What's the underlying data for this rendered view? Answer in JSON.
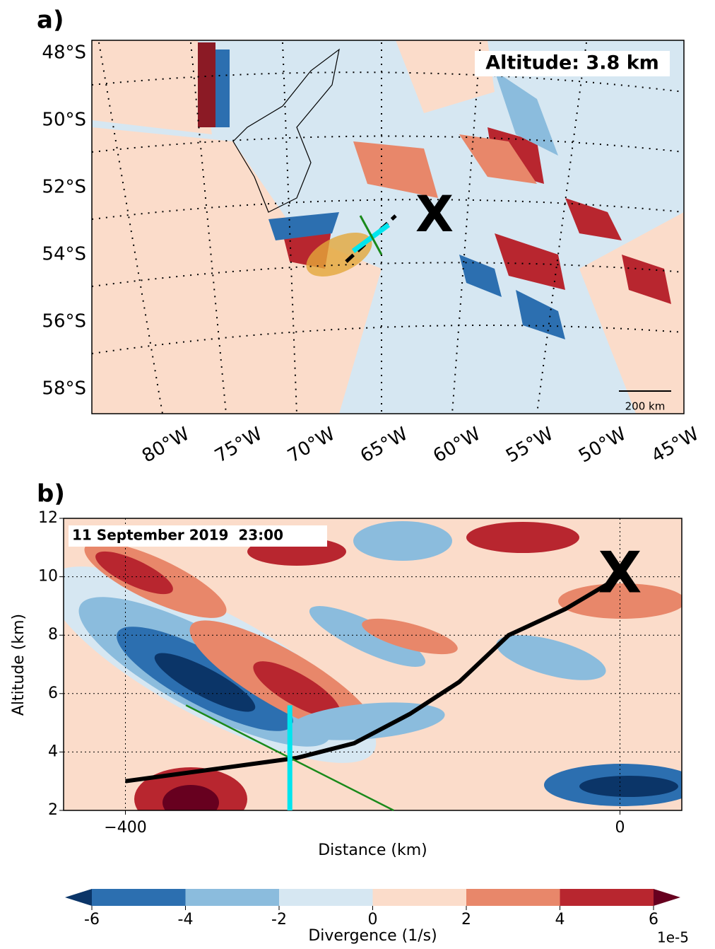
{
  "chart_data": [
    {
      "type": "map",
      "label": "a)",
      "annotation": "Altitude: 3.8 km",
      "marker": "X",
      "scale_label": "200 km",
      "lat_labels": [
        "48°S",
        "50°S",
        "52°S",
        "54°S",
        "56°S",
        "58°S"
      ],
      "lon_labels": [
        "80°W",
        "75°W",
        "70°W",
        "65°W",
        "60°W",
        "55°W",
        "50°W",
        "45°W"
      ]
    },
    {
      "type": "section",
      "label": "b)",
      "annotation": "11 September 2019  23:00",
      "xlabel": "Distance (km)",
      "ylabel": "Altitude (km)",
      "xlim": [
        -450,
        50
      ],
      "xticks": [
        {
          "value": -400,
          "label": "−400"
        },
        0
      ],
      "ylim": [
        2,
        12
      ],
      "yticks": [
        2,
        4,
        6,
        8,
        10,
        12
      ],
      "grid": true,
      "marker": {
        "x": 0,
        "y": 10,
        "label": "X"
      },
      "series": [
        {
          "color": "#000000",
          "x": [
            -400,
            -313,
            -261,
            -215,
            -170,
            -130,
            -90,
            -44,
            0
          ],
          "values": [
            3.0,
            3.5,
            3.8,
            4.3,
            5.3,
            6.4,
            8.0,
            8.9,
            10.0
          ]
        },
        {
          "color": "#1a8a1a",
          "x": [
            -351,
            -183
          ],
          "values": [
            5.6,
            2.0
          ]
        },
        {
          "color": "#00e5ee",
          "x": [
            -267,
            -267
          ],
          "values": [
            5.6,
            2.0
          ]
        }
      ]
    },
    {
      "type": "colorbar",
      "xlabel": "Divergence (1/s)",
      "exponent": "1e-5",
      "xlim": [
        -6,
        6
      ],
      "xticks": [
        -6,
        -4,
        -2,
        0,
        2,
        4,
        6
      ],
      "colors": [
        "#2c6fb0",
        "#8bbcdd",
        "#d6e7f2",
        "#fbdcca",
        "#e8876a",
        "#b8262f"
      ],
      "extend_colors": [
        "#0b3568",
        "#67001f"
      ]
    }
  ]
}
